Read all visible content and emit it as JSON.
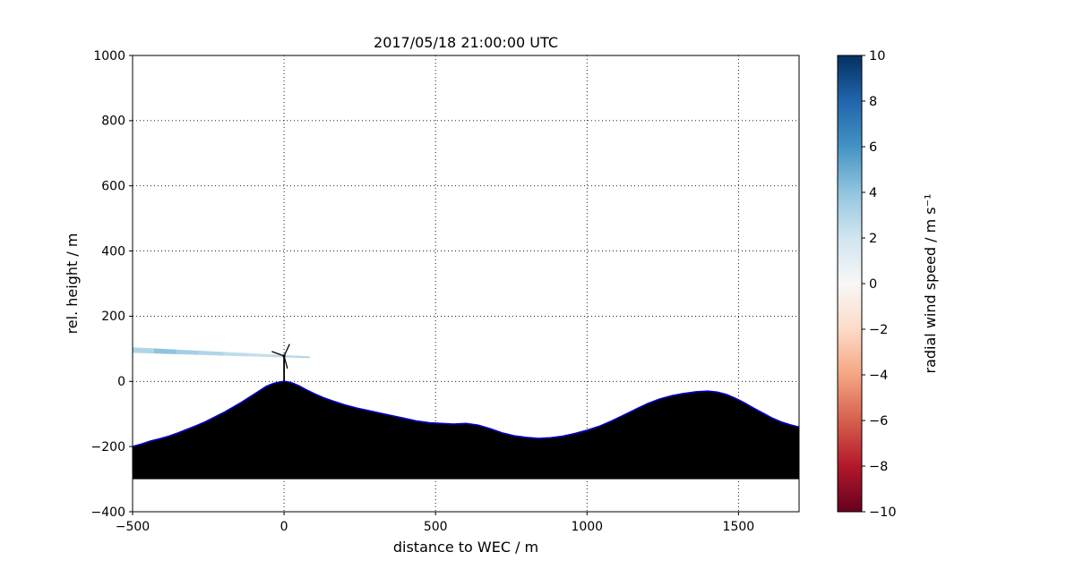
{
  "chart_data": {
    "type": "area",
    "title": "2017/05/18 21:00:00 UTC",
    "xlabel": "distance to WEC / m",
    "ylabel": "rel. height / m",
    "xlim": [
      -500,
      1700
    ],
    "ylim": [
      -400,
      1000
    ],
    "xticks": [
      -500,
      0,
      500,
      1000,
      1500
    ],
    "yticks": [
      -400,
      -200,
      0,
      200,
      400,
      600,
      800,
      1000
    ],
    "grid": true,
    "axes_background": "#ffffff",
    "terrain": {
      "fill": "#000000",
      "edge_color": "#0000cc",
      "base": -300,
      "points": [
        [
          -500,
          -200
        ],
        [
          -470,
          -192
        ],
        [
          -440,
          -183
        ],
        [
          -410,
          -176
        ],
        [
          -380,
          -168
        ],
        [
          -350,
          -158
        ],
        [
          -320,
          -147
        ],
        [
          -290,
          -136
        ],
        [
          -260,
          -124
        ],
        [
          -230,
          -110
        ],
        [
          -200,
          -96
        ],
        [
          -170,
          -80
        ],
        [
          -140,
          -64
        ],
        [
          -110,
          -46
        ],
        [
          -80,
          -28
        ],
        [
          -60,
          -16
        ],
        [
          -45,
          -10
        ],
        [
          -30,
          -5
        ],
        [
          -15,
          -2
        ],
        [
          0,
          0
        ],
        [
          15,
          -2
        ],
        [
          30,
          -6
        ],
        [
          50,
          -14
        ],
        [
          70,
          -24
        ],
        [
          100,
          -38
        ],
        [
          130,
          -50
        ],
        [
          160,
          -60
        ],
        [
          200,
          -72
        ],
        [
          240,
          -82
        ],
        [
          280,
          -90
        ],
        [
          320,
          -98
        ],
        [
          360,
          -106
        ],
        [
          400,
          -114
        ],
        [
          440,
          -122
        ],
        [
          480,
          -127
        ],
        [
          520,
          -129
        ],
        [
          560,
          -131
        ],
        [
          600,
          -129
        ],
        [
          640,
          -134
        ],
        [
          680,
          -145
        ],
        [
          720,
          -158
        ],
        [
          760,
          -167
        ],
        [
          800,
          -172
        ],
        [
          840,
          -175
        ],
        [
          880,
          -173
        ],
        [
          920,
          -168
        ],
        [
          960,
          -160
        ],
        [
          1000,
          -150
        ],
        [
          1040,
          -138
        ],
        [
          1080,
          -122
        ],
        [
          1120,
          -104
        ],
        [
          1160,
          -86
        ],
        [
          1200,
          -68
        ],
        [
          1240,
          -54
        ],
        [
          1280,
          -44
        ],
        [
          1320,
          -37
        ],
        [
          1360,
          -32
        ],
        [
          1400,
          -30
        ],
        [
          1430,
          -33
        ],
        [
          1460,
          -40
        ],
        [
          1490,
          -52
        ],
        [
          1520,
          -66
        ],
        [
          1550,
          -82
        ],
        [
          1580,
          -97
        ],
        [
          1610,
          -112
        ],
        [
          1640,
          -124
        ],
        [
          1670,
          -133
        ],
        [
          1700,
          -140
        ]
      ]
    },
    "beam": {
      "x_start": -500,
      "x_end": 85,
      "center_start": 96,
      "center_end": 74,
      "half_width_start": 8.5,
      "half_width_end": 3,
      "segments": [
        [
          -500,
          -430,
          3.0
        ],
        [
          -430,
          -355,
          4.1
        ],
        [
          -355,
          -280,
          3.4
        ],
        [
          -280,
          -200,
          3.0
        ],
        [
          -200,
          -120,
          2.6
        ],
        [
          -120,
          -40,
          2.4
        ],
        [
          -40,
          40,
          2.6
        ],
        [
          40,
          85,
          2.9
        ]
      ]
    },
    "turbine": {
      "x": 0,
      "base_height": 0,
      "hub_height": 78,
      "rotor_radius": 40,
      "blade_angles_deg": [
        65,
        160,
        285
      ],
      "color": "#000000"
    },
    "colorbar": {
      "label": "radial wind speed / m s⁻¹",
      "vmin": -10,
      "vmax": 10,
      "ticks": [
        10,
        8,
        6,
        4,
        2,
        0,
        -2,
        -4,
        -6,
        -8,
        -10
      ],
      "cmap_stops": [
        [
          0.0,
          "#67001f"
        ],
        [
          0.1,
          "#b2182b"
        ],
        [
          0.2,
          "#d6604d"
        ],
        [
          0.3,
          "#f4a582"
        ],
        [
          0.4,
          "#fddbc7"
        ],
        [
          0.5,
          "#f7f7f7"
        ],
        [
          0.6,
          "#d1e5f0"
        ],
        [
          0.7,
          "#92c5de"
        ],
        [
          0.8,
          "#4393c3"
        ],
        [
          0.9,
          "#2166ac"
        ],
        [
          1.0,
          "#053061"
        ]
      ]
    }
  }
}
